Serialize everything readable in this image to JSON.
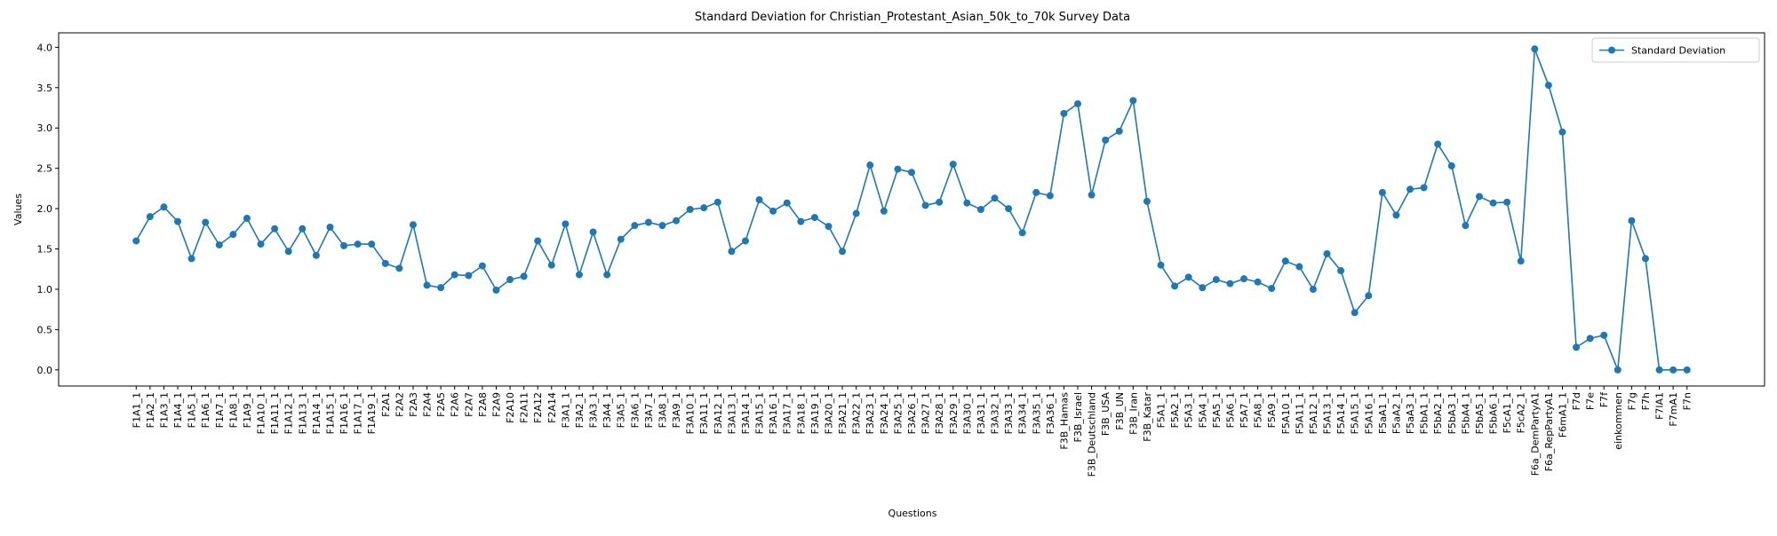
{
  "chart_data": {
    "type": "line",
    "title": "Standard Deviation for Christian_Protestant_Asian_50k_to_70k Survey Data",
    "xlabel": "Questions",
    "ylabel": "Values",
    "categories": [
      "F1A1_1",
      "F1A2_1",
      "F1A3_1",
      "F1A4_1",
      "F1A5_1",
      "F1A6_1",
      "F1A7_1",
      "F1A8_1",
      "F1A9_1",
      "F1A10_1",
      "F1A11_1",
      "F1A12_1",
      "F1A13_1",
      "F1A14_1",
      "F1A15_1",
      "F1A16_1",
      "F1A17_1",
      "F1A19_1",
      "F2A1",
      "F2A2",
      "F2A3",
      "F2A4",
      "F2A5",
      "F2A6",
      "F2A7",
      "F2A8",
      "F2A9",
      "F2A10",
      "F2A11",
      "F2A12",
      "F2A14",
      "F3A1_1",
      "F3A2_1",
      "F3A3_1",
      "F3A4_1",
      "F3A5_1",
      "F3A6_1",
      "F3A7_1",
      "F3A8_1",
      "F3A9_1",
      "F3A10_1",
      "F3A11_1",
      "F3A12_1",
      "F3A13_1",
      "F3A14_1",
      "F3A15_1",
      "F3A16_1",
      "F3A17_1",
      "F3A18_1",
      "F3A19_1",
      "F3A20_1",
      "F3A21_1",
      "F3A22_1",
      "F3A23_1",
      "F3A24_1",
      "F3A25_1",
      "F3A26_1",
      "F3A27_1",
      "F3A28_1",
      "F3A29_1",
      "F3A30_1",
      "F3A31_1",
      "F3A32_1",
      "F3A33_1",
      "F3A34_1",
      "F3A35_1",
      "F3A36_1",
      "F3B_Hamas",
      "F3B_Israel",
      "F3B_Deutschland",
      "F3B_USA",
      "F3B_UN",
      "F3B_Iran",
      "F3B_Katar",
      "F5A1_1",
      "F5A2_1",
      "F5A3_1",
      "F5A4_1",
      "F5A5_1",
      "F5A6_1",
      "F5A7_1",
      "F5A8_1",
      "F5A9_1",
      "F5A10_1",
      "F5A11_1",
      "F5A12_1",
      "F5A13_1",
      "F5A14_1",
      "F5A15_1",
      "F5A16_1",
      "F5aA1_1",
      "F5aA2_1",
      "F5aA3_1",
      "F5bA1_1",
      "F5bA2_1",
      "F5bA3_1",
      "F5bA4_1",
      "F5bA5_1",
      "F5bA6_1",
      "F5cA1_1",
      "F5cA2_1",
      "F6a_DemPartyA1",
      "F6a_RepPartyA1",
      "F6mA1_1",
      "F7d",
      "F7e",
      "F7f",
      "einkommen",
      "F7g",
      "F7h",
      "F7lA1",
      "F7mA1",
      "F7n"
    ],
    "series": [
      {
        "name": "Standard Deviation",
        "color": "#1f77b4",
        "values": [
          1.6,
          1.9,
          2.02,
          1.84,
          1.38,
          1.83,
          1.55,
          1.68,
          1.88,
          1.56,
          1.75,
          1.47,
          1.75,
          1.42,
          1.77,
          1.54,
          1.56,
          1.56,
          1.32,
          1.26,
          1.8,
          1.05,
          1.02,
          1.18,
          1.17,
          1.29,
          0.99,
          1.12,
          1.16,
          1.6,
          1.3,
          1.81,
          1.18,
          1.71,
          1.18,
          1.62,
          1.79,
          1.83,
          1.79,
          1.85,
          1.99,
          2.01,
          2.08,
          1.47,
          1.6,
          2.11,
          1.97,
          2.07,
          1.84,
          1.89,
          1.78,
          1.47,
          1.94,
          2.54,
          1.97,
          2.49,
          2.45,
          2.04,
          2.08,
          2.55,
          2.07,
          1.99,
          2.13,
          2.0,
          1.7,
          2.2,
          2.16,
          3.18,
          3.3,
          2.17,
          2.85,
          2.96,
          3.34,
          2.09,
          1.3,
          1.04,
          1.15,
          1.02,
          1.12,
          1.07,
          1.13,
          1.09,
          1.01,
          1.35,
          1.28,
          1.0,
          1.44,
          1.23,
          0.71,
          0.92,
          2.2,
          1.92,
          2.24,
          2.26,
          2.8,
          2.53,
          1.79,
          2.15,
          2.07,
          2.08,
          1.35,
          3.98,
          3.53,
          2.95,
          0.28,
          0.39,
          0.43,
          0.0,
          1.85,
          1.38,
          0.0,
          0.0,
          0.0
        ]
      }
    ],
    "ylim": [
      -0.2,
      4.18
    ],
    "yticks": [
      {
        "value": 0,
        "label": "0.0"
      },
      {
        "value": 0.5,
        "label": "0.5"
      },
      {
        "value": 1,
        "label": "1.0"
      },
      {
        "value": 1.5,
        "label": "1.5"
      },
      {
        "value": 2,
        "label": "2.0"
      },
      {
        "value": 2.5,
        "label": "2.5"
      },
      {
        "value": 3,
        "label": "3.0"
      },
      {
        "value": 3.5,
        "label": "3.5"
      },
      {
        "value": 4,
        "label": "4.0"
      }
    ],
    "legend": "upper right"
  }
}
